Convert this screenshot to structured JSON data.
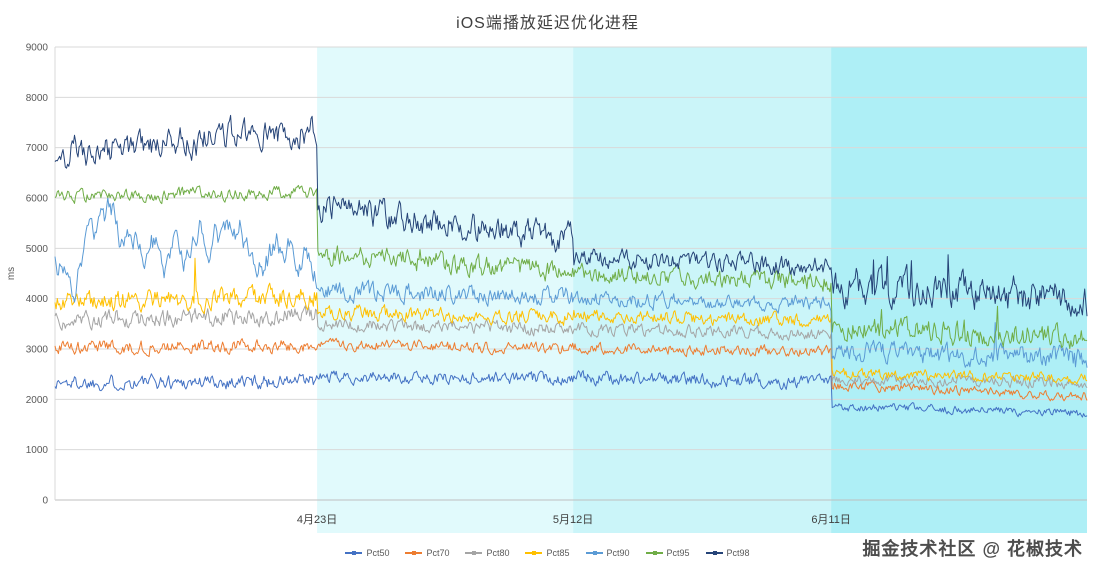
{
  "watermark": {
    "text": "掘金技术社区 @ 花椒技术"
  },
  "chart_data": {
    "type": "line",
    "title": "iOS端播放延迟优化进程",
    "ylabel": "ms",
    "ylim": [
      0,
      9000
    ],
    "grid": true,
    "legend_position": "bottom",
    "y_ticks": [
      "0",
      "1000",
      "2000",
      "3000",
      "4000",
      "5000",
      "6000",
      "7000",
      "8000",
      "9000"
    ],
    "x_ticks": [
      {
        "label": "4月23日",
        "pos": 0.254
      },
      {
        "label": "5月12日",
        "pos": 0.502
      },
      {
        "label": "6月11日",
        "pos": 0.752
      }
    ],
    "bands": [
      {
        "from": 0,
        "to": 0.254,
        "color": "#FFFFFF"
      },
      {
        "from": 0.254,
        "to": 0.502,
        "color": "#E1FAFC"
      },
      {
        "from": 0.502,
        "to": 0.752,
        "color": "#CBF5F9"
      },
      {
        "from": 0.752,
        "to": 1,
        "color": "#AEEFF6"
      }
    ],
    "series": [
      {
        "name": "Pct50",
        "color": "#4472C4",
        "approx_phase_means_ms": [
          2350,
          2430,
          2390,
          1790
        ],
        "segments": [
          {
            "from": 2330,
            "to": 2360,
            "noise": 120
          },
          {
            "from": 2440,
            "to": 2420,
            "noise": 100
          },
          {
            "from": 2430,
            "to": 2340,
            "noise": 110
          },
          {
            "from": 1860,
            "to": 1720,
            "noise": 70
          }
        ]
      },
      {
        "name": "Pct70",
        "color": "#ED7D31",
        "approx_phase_means_ms": [
          3050,
          3050,
          3000,
          2170
        ],
        "segments": [
          {
            "from": 3040,
            "to": 3060,
            "noise": 110
          },
          {
            "from": 3080,
            "to": 3020,
            "noise": 90
          },
          {
            "from": 3030,
            "to": 2960,
            "noise": 90
          },
          {
            "from": 2290,
            "to": 2060,
            "noise": 80
          }
        ]
      },
      {
        "name": "Pct80",
        "color": "#A5A5A5",
        "approx_phase_means_ms": [
          3630,
          3440,
          3360,
          2360
        ],
        "segments": [
          {
            "from": 3580,
            "to": 3680,
            "noise": 150
          },
          {
            "from": 3480,
            "to": 3400,
            "noise": 110
          },
          {
            "from": 3400,
            "to": 3310,
            "noise": 100
          },
          {
            "from": 2400,
            "to": 2330,
            "noise": 90
          }
        ]
      },
      {
        "name": "Pct85",
        "color": "#FFC000",
        "approx_phase_means_ms": [
          4000,
          3680,
          3610,
          2470
        ],
        "segments": [
          {
            "from": 3930,
            "to": 4060,
            "noise": 170,
            "spike": {
              "p": 0.008,
              "amp": 700
            }
          },
          {
            "from": 3720,
            "to": 3630,
            "noise": 120
          },
          {
            "from": 3660,
            "to": 3560,
            "noise": 110
          },
          {
            "from": 2510,
            "to": 2420,
            "noise": 90
          }
        ]
      },
      {
        "name": "Pct90",
        "color": "#5B9BD5",
        "approx_phase_means_ms": [
          5100,
          4100,
          3950,
          2880
        ],
        "segments": [
          {
            "from": 5050,
            "to": 5150,
            "noise": 250,
            "smooth": 0.93
          },
          {
            "from": 4150,
            "to": 4050,
            "noise": 150
          },
          {
            "from": 3990,
            "to": 3910,
            "noise": 130
          },
          {
            "from": 2960,
            "to": 2810,
            "noise": 170,
            "spike": {
              "p": 0.008,
              "amp": 500
            }
          }
        ]
      },
      {
        "name": "Pct95",
        "color": "#70AD47",
        "approx_phase_means_ms": [
          6080,
          4700,
          4430,
          3330
        ],
        "segments": [
          {
            "from": 6040,
            "to": 6110,
            "noise": 100,
            "smooth": 0.6
          },
          {
            "from": 4880,
            "to": 4530,
            "noise": 170,
            "spike": {
              "p": 0.008,
              "amp": 400
            }
          },
          {
            "from": 4520,
            "to": 4330,
            "noise": 150
          },
          {
            "from": 3420,
            "to": 3230,
            "noise": 190,
            "spike": {
              "p": 0.01,
              "amp": 450
            }
          }
        ]
      },
      {
        "name": "Pct98",
        "color": "#264478",
        "approx_phase_means_ms": [
          7100,
          5500,
          4730,
          4130
        ],
        "segments": [
          {
            "from": 6900,
            "to": 7350,
            "noise": 240,
            "smooth": 0.6,
            "spike": {
              "p": 0.005,
              "amp": 500
            }
          },
          {
            "from": 5820,
            "to": 5180,
            "noise": 220,
            "smooth": 0.6,
            "spike": {
              "p": 0.006,
              "amp": 600
            }
          },
          {
            "from": 4820,
            "to": 4640,
            "noise": 150
          },
          {
            "from": 4280,
            "to": 3980,
            "noise": 280,
            "smooth": 0.6,
            "spike": {
              "p": 0.02,
              "amp": 900
            }
          }
        ]
      }
    ]
  }
}
